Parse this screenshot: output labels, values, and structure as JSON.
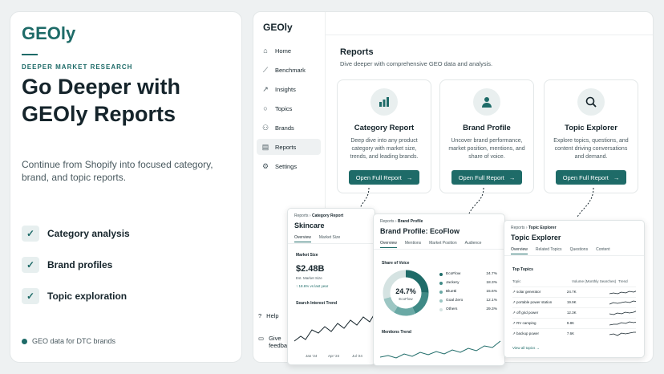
{
  "hero": {
    "brand": "GEOly",
    "eyebrow": "DEEPER MARKET RESEARCH",
    "headline": "Go Deeper with GEOly Reports",
    "lead": "Continue from Shopify into focused category, brand, and topic reports.",
    "features": [
      "Category analysis",
      "Brand profiles",
      "Topic exploration"
    ],
    "footer": "GEO data for DTC brands"
  },
  "app": {
    "logo": "GEOly",
    "nav": [
      {
        "label": "Home",
        "icon": "home-icon"
      },
      {
        "label": "Benchmark",
        "icon": "chart-line-icon"
      },
      {
        "label": "Insights",
        "icon": "trend-icon"
      },
      {
        "label": "Topics",
        "icon": "chat-bubble-icon"
      },
      {
        "label": "Brands",
        "icon": "users-icon"
      },
      {
        "label": "Reports",
        "icon": "document-icon"
      },
      {
        "label": "Settings",
        "icon": "gear-icon"
      }
    ],
    "help": "Help",
    "feedback": "Give feedback",
    "reports_title": "Reports",
    "reports_sub": "Dive deeper with comprehensive GEO data and analysis.",
    "button_label": "Open Full Report",
    "cards": [
      {
        "title": "Category Report",
        "desc": "Deep dive into any product category with market size, trends, and leading brands.",
        "icon": "bar-chart-icon"
      },
      {
        "title": "Brand Profile",
        "desc": "Uncover brand performance, market position, mentions, and share of voice.",
        "icon": "person-icon"
      },
      {
        "title": "Topic Explorer",
        "desc": "Explore topics, questions, and content driving conversations and demand.",
        "icon": "magnifier-icon"
      }
    ]
  },
  "category": {
    "crumb_root": "Reports",
    "crumb_leaf": "Category Report",
    "title": "Skincare",
    "tabs": [
      "Overview",
      "Market Size"
    ],
    "ms_label": "Market Size",
    "value": "$2.48B",
    "value_sub": "Est. Market Size",
    "change": "↑ 18.6% vs last year",
    "trend_label": "Search Interest Trend",
    "x_labels": [
      "Jan '24",
      "Apr '24",
      "Jul '24"
    ]
  },
  "brand": {
    "crumb_root": "Reports",
    "crumb_leaf": "Brand Profile",
    "title": "Brand Profile: EcoFlow",
    "tabs": [
      "Overview",
      "Mentions",
      "Market Position",
      "Audience"
    ],
    "sov_label": "Share of Voice",
    "donut_value": "24.7%",
    "donut_name": "EcoFlow",
    "legend": [
      {
        "name": "EcoFlow",
        "value": "24.7%",
        "color": "#1e6b68"
      },
      {
        "name": "Jackery",
        "value": "18.3%",
        "color": "#3f8a86"
      },
      {
        "name": "Bluetti",
        "value": "15.6%",
        "color": "#6aa9a5"
      },
      {
        "name": "Goal Zero",
        "value": "12.1%",
        "color": "#9cc6c3"
      },
      {
        "name": "Others",
        "value": "29.3%",
        "color": "#d5e3e2"
      }
    ],
    "mentions_label": "Mentions Trend"
  },
  "topic": {
    "crumb_root": "Reports",
    "crumb_leaf": "Topic Explorer",
    "title": "Topic Explorer",
    "tabs": [
      "Overview",
      "Related Topics",
      "Questions",
      "Content"
    ],
    "top_label": "Top Topics",
    "col_topic": "Topic",
    "col_vol": "Volume (Monthly Searches)",
    "col_trend": "Trend",
    "rows": [
      {
        "topic": "solar generator",
        "vol": "24.7K"
      },
      {
        "topic": "portable power station",
        "vol": "19.9K"
      },
      {
        "topic": "off grid power",
        "vol": "12.3K"
      },
      {
        "topic": "RV camping",
        "vol": "9.8K"
      },
      {
        "topic": "backup power",
        "vol": "7.6K"
      }
    ],
    "view_all": "View all topics →"
  }
}
